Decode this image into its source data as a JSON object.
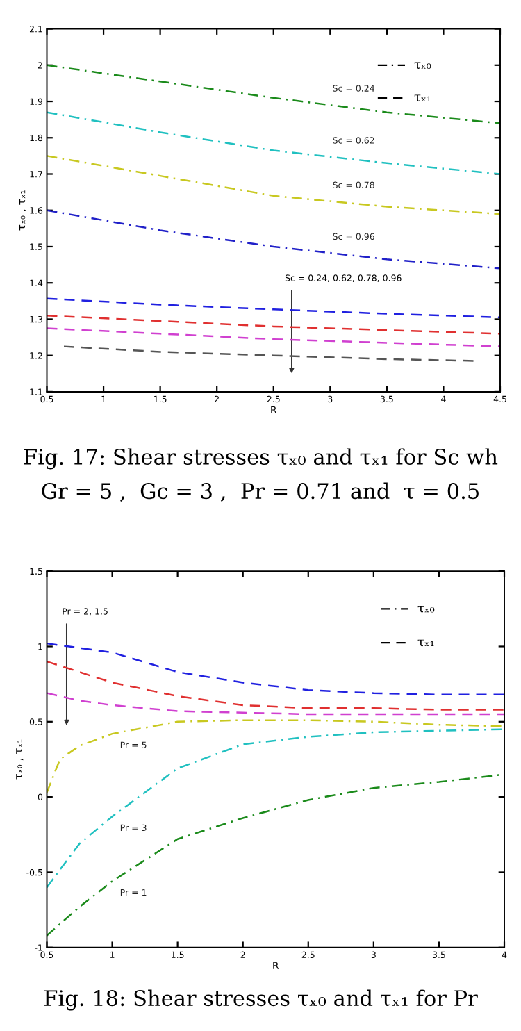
{
  "chart_data": [
    {
      "type": "line",
      "xlabel": "R",
      "ylabel": "τₓ₀ , τₓ₁",
      "xlim": [
        0.5,
        4.5
      ],
      "xticks": [
        0.5,
        1,
        1.5,
        2,
        2.5,
        3,
        3.5,
        4,
        4.5
      ],
      "ylim": [
        1.1,
        2.1
      ],
      "yticks": [
        1.1,
        1.2,
        1.3,
        1.4,
        1.5,
        1.6,
        1.7,
        1.8,
        1.9,
        2,
        2.1
      ],
      "x": [
        0.5,
        1.5,
        2.5,
        3.5,
        4.5
      ],
      "series": [
        {
          "name": "Sc = 0.24",
          "color": "#1a8a1a",
          "line_style": "dashdot",
          "values": [
            2.0,
            1.955,
            1.91,
            1.87,
            1.84
          ]
        },
        {
          "name": "Sc = 0.62",
          "color": "#20c0c0",
          "line_style": "dashdot",
          "values": [
            1.87,
            1.815,
            1.765,
            1.73,
            1.7
          ]
        },
        {
          "name": "Sc = 0.78",
          "color": "#c8c820",
          "line_style": "dashdot",
          "values": [
            1.75,
            1.695,
            1.64,
            1.61,
            1.59
          ]
        },
        {
          "name": "Sc = 0.96",
          "color": "#2020c8",
          "line_style": "dashdot",
          "values": [
            1.6,
            1.545,
            1.5,
            1.465,
            1.44
          ]
        },
        {
          "color": "#2020e0",
          "line_style": "dashed",
          "values": [
            1.357,
            1.34,
            1.327,
            1.315,
            1.305
          ]
        },
        {
          "color": "#e03030",
          "line_style": "dashed",
          "values": [
            1.31,
            1.295,
            1.28,
            1.27,
            1.26
          ]
        },
        {
          "color": "#d040d0",
          "line_style": "dashed",
          "values": [
            1.275,
            1.26,
            1.245,
            1.235,
            1.225
          ]
        },
        {
          "color": "#555555",
          "line_style": "dashed",
          "x": [
            0.65,
            1.5,
            2.5,
            3.5,
            4.3
          ],
          "values": [
            1.225,
            1.21,
            1.2,
            1.19,
            1.185
          ]
        }
      ],
      "annotations": [
        "Sc = 0.24, 0.62, 0.78, 0.96",
        "τₓ₀",
        "τₓ₁",
        "Fig. 17: Shear stresses τₓ₀ and τₓ₁ for Sc wh",
        "Gr = 5 ,  Gc = 3 ,  Pr = 0.71 and  τ = 0.5"
      ]
    },
    {
      "type": "line",
      "xlabel": "R",
      "ylabel": "τₓ₀ , τₓ₁",
      "xlim": [
        0.5,
        4
      ],
      "xticks": [
        0.5,
        1,
        1.5,
        2,
        2.5,
        3,
        3.5,
        4
      ],
      "ylim": [
        -1,
        1.5
      ],
      "yticks": [
        -1,
        -0.5,
        0,
        0.5,
        1,
        1.5
      ],
      "x": [
        0.5,
        0.75,
        1,
        1.5,
        2,
        2.5,
        3,
        3.5,
        4
      ],
      "series": [
        {
          "color": "#2020e0",
          "line_style": "dashed",
          "values": [
            1.02,
            0.99,
            0.96,
            0.83,
            0.76,
            0.71,
            0.69,
            0.68,
            0.68
          ]
        },
        {
          "color": "#e03030",
          "line_style": "dashed",
          "values": [
            0.9,
            0.83,
            0.76,
            0.67,
            0.61,
            0.59,
            0.59,
            0.58,
            0.58
          ]
        },
        {
          "color": "#d040d0",
          "line_style": "dashed",
          "values": [
            0.69,
            0.64,
            0.61,
            0.57,
            0.56,
            0.55,
            0.55,
            0.55,
            0.55
          ]
        },
        {
          "name": "Pr = 5",
          "color": "#c8c820",
          "line_style": "dashdot",
          "x": [
            0.5,
            0.6,
            0.75,
            1,
            1.5,
            2,
            2.5,
            3,
            3.5,
            4
          ],
          "values": [
            0.03,
            0.25,
            0.34,
            0.42,
            0.5,
            0.51,
            0.51,
            0.5,
            0.48,
            0.47
          ]
        },
        {
          "name": "Pr = 3",
          "color": "#20c0c0",
          "line_style": "dashdot",
          "values": [
            -0.6,
            -0.31,
            -0.13,
            0.19,
            0.35,
            0.4,
            0.43,
            0.44,
            0.45
          ]
        },
        {
          "name": "Pr = 1",
          "color": "#1a8a1a",
          "line_style": "dashdot",
          "values": [
            -0.92,
            -0.73,
            -0.56,
            -0.28,
            -0.14,
            -0.02,
            0.06,
            0.1,
            0.15
          ]
        }
      ],
      "annotations": [
        "Pr = 2, 1.5",
        "τₓ₀",
        "τₓ₁",
        "Fig. 18: Shear stresses τₓ₀ and τₓ₁ for Pr"
      ]
    }
  ]
}
